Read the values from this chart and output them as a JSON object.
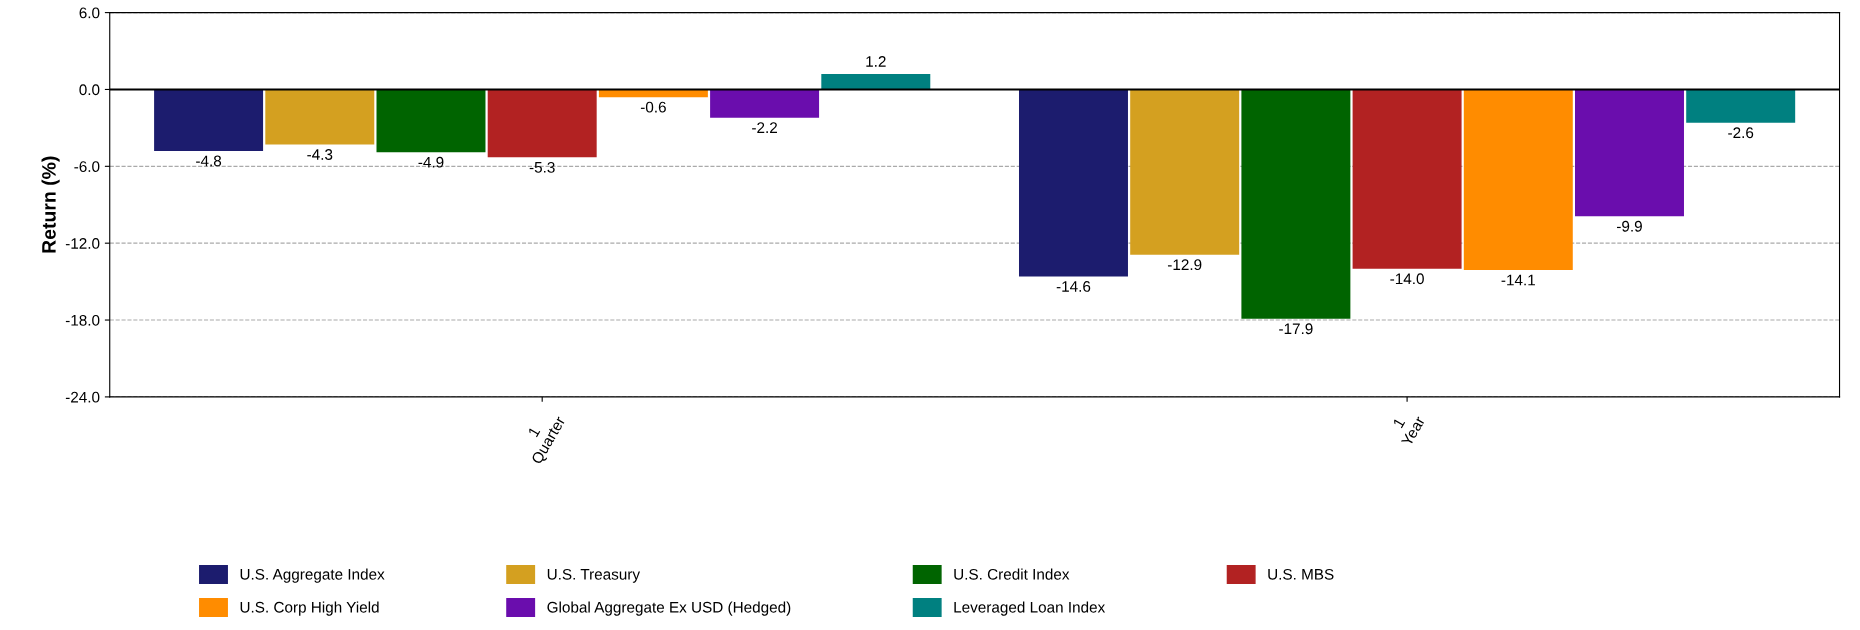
{
  "chart_data": {
    "type": "bar",
    "ylabel": "Return (%)",
    "categories": [
      "1\nQuarter",
      "1\nYear"
    ],
    "series": [
      {
        "name": "U.S. Aggregate Index",
        "color": "#1c1c6e",
        "values": [
          -4.8,
          -14.6
        ]
      },
      {
        "name": "U.S. Treasury",
        "color": "#d4a020",
        "values": [
          -4.3,
          -12.9
        ]
      },
      {
        "name": "U.S. Credit Index",
        "color": "#006400",
        "values": [
          -4.9,
          -17.9
        ]
      },
      {
        "name": "U.S. MBS",
        "color": "#b22222",
        "values": [
          -5.3,
          -14.0
        ],
        "value_labels": [
          "-5.3",
          "-14.0"
        ]
      },
      {
        "name": "U.S. Corp High Yield",
        "color": "#ff8c00",
        "values": [
          -0.6,
          -14.1
        ]
      },
      {
        "name": "Global Aggregate Ex USD (Hedged)",
        "color": "#6a0dad",
        "values": [
          -2.2,
          -9.9
        ]
      },
      {
        "name": "Leveraged Loan Index",
        "color": "#008080",
        "values": [
          1.2,
          -2.6
        ]
      }
    ],
    "ylim": [
      -24,
      6
    ],
    "yticks": [
      {
        "value": -24,
        "label": "-24.0"
      },
      {
        "value": -18,
        "label": "-18.0"
      },
      {
        "value": -12,
        "label": "-12.0"
      },
      {
        "value": -6,
        "label": "-6.0"
      },
      {
        "value": 0,
        "label": "0.0"
      },
      {
        "value": 6,
        "label": "6.0"
      }
    ],
    "ref_lines": [
      {
        "axis": "y",
        "value": 0,
        "color": "#000000",
        "line_style": "solid"
      }
    ],
    "grid": "y",
    "legend": "bottom",
    "data_labels": true
  }
}
